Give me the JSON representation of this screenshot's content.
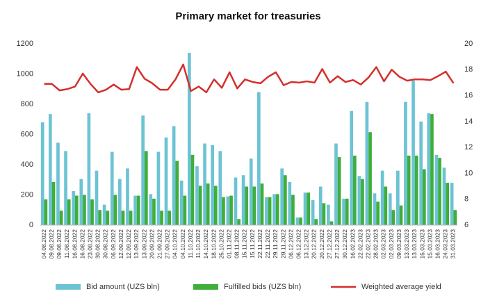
{
  "chart_data": {
    "type": "bar_line",
    "title": "Primary market for treasuries",
    "categories": [
      "04.08.2022",
      "09.08.2022",
      "09.08.2022",
      "11.08.2022",
      "16.08.2022",
      "16.08.2022",
      "23.08.2022",
      "30.08.2022",
      "30.08.2022",
      "06.09.2022",
      "12.09.2022",
      "12.09.2022",
      "13.09.2022",
      "13.09.2022",
      "20.09.2022",
      "21.09.2022",
      "27.09.2022",
      "04.10.2022",
      "04.10.2022",
      "11.10.2022",
      "11.10.2022",
      "14.10.2022",
      "18.10.2022",
      "25.10.2022",
      "01.11.2022",
      "08.11.2022",
      "15.11.2022",
      "15.11.2022",
      "22.11.2022",
      "22.11.2022",
      "29.11.2022",
      "29.11.2022",
      "06.12.2022",
      "06.12.2022",
      "13.12.2022",
      "20.12.2022",
      "20.12.2022",
      "27.12.2022",
      "27.12.2022",
      "30.12.2022",
      "16.02.2023",
      "22.02.2023",
      "22.02.2023",
      "28.02.2023",
      "02.03.2023",
      "02.03.2023",
      "09.03.2023",
      "13.03.2023",
      "13.03.2023",
      "15.03.2023",
      "15.03.2023",
      "16.03.2023",
      "24.03.2023",
      "31.03.2023"
    ],
    "series": [
      {
        "name": "Bid amount (UZS bln)",
        "type": "bar",
        "color": "#6cc3d3",
        "values": [
          680,
          735,
          545,
          490,
          225,
          305,
          740,
          360,
          135,
          485,
          305,
          375,
          195,
          725,
          205,
          485,
          580,
          655,
          295,
          1140,
          390,
          540,
          530,
          490,
          190,
          315,
          330,
          440,
          880,
          185,
          205,
          375,
          285,
          50,
          215,
          165,
          255,
          135,
          540,
          175,
          755,
          325,
          815,
          210,
          360,
          210,
          360,
          815,
          955,
          685,
          740,
          465,
          380,
          280
        ]
      },
      {
        "name": "Fulfilled bids (UZS bln)",
        "type": "bar",
        "color": "#3fae3a",
        "values": [
          170,
          285,
          95,
          170,
          195,
          200,
          170,
          100,
          95,
          200,
          95,
          95,
          195,
          490,
          175,
          95,
          95,
          425,
          195,
          465,
          260,
          275,
          260,
          185,
          195,
          40,
          255,
          255,
          275,
          185,
          205,
          330,
          200,
          50,
          215,
          40,
          145,
          25,
          450,
          175,
          460,
          305,
          615,
          155,
          255,
          100,
          130,
          460,
          460,
          370,
          735,
          445,
          280,
          100
        ]
      },
      {
        "name": "Weighted average yield",
        "type": "line",
        "axis": "y2",
        "color": "#d42f2b",
        "values": [
          16.9,
          16.9,
          16.4,
          16.5,
          16.7,
          17.7,
          16.9,
          16.25,
          16.45,
          16.85,
          16.45,
          16.5,
          18.2,
          17.3,
          16.95,
          16.45,
          16.45,
          17.25,
          18.4,
          16.35,
          16.7,
          16.25,
          17.25,
          16.6,
          17.8,
          16.55,
          17.25,
          17.05,
          16.95,
          17.45,
          17.8,
          16.8,
          17.05,
          17.0,
          17.1,
          17.0,
          18.05,
          17.0,
          17.5,
          17.05,
          17.2,
          16.85,
          17.4,
          18.2,
          17.1,
          18.0,
          17.45,
          17.15,
          17.25,
          17.25,
          17.2,
          17.5,
          17.85,
          16.95
        ]
      }
    ],
    "ylim": [
      0,
      1200
    ],
    "yticks": [
      0,
      200,
      400,
      600,
      800,
      1000,
      1200
    ],
    "y2lim": [
      6,
      20
    ],
    "y2ticks": [
      6,
      8,
      10,
      12,
      14,
      16,
      18,
      20
    ],
    "grid": false,
    "legend": "bottom"
  }
}
